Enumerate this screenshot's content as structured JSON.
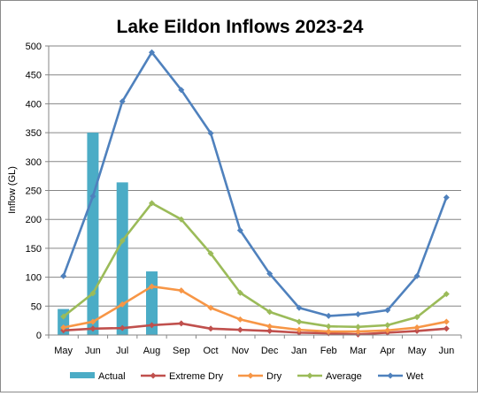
{
  "chart_data": {
    "type": "bar+line",
    "title": "Lake Eildon Inflows 2023-24",
    "ylabel": "Inflow (GL)",
    "xlabel": "",
    "ylim": [
      0,
      500
    ],
    "yticks": [
      0,
      50,
      100,
      150,
      200,
      250,
      300,
      350,
      400,
      450,
      500
    ],
    "grid": true,
    "legend_position": "bottom",
    "categories": [
      "May",
      "Jun",
      "Jul",
      "Aug",
      "Sep",
      "Oct",
      "Nov",
      "Dec",
      "Jan",
      "Feb",
      "Mar",
      "Apr",
      "May",
      "Jun"
    ],
    "series": [
      {
        "name": "Actual",
        "type": "bar",
        "color": "#4bacc6",
        "values": [
          45,
          350,
          264,
          110,
          null,
          null,
          null,
          null,
          null,
          null,
          null,
          null,
          null,
          null
        ]
      },
      {
        "name": "Extreme Dry",
        "type": "line",
        "color": "#c0504d",
        "values": [
          8,
          11,
          12,
          17,
          20,
          11,
          9,
          7,
          4,
          3,
          1,
          4,
          7,
          11
        ]
      },
      {
        "name": "Dry",
        "type": "line",
        "color": "#f79646",
        "values": [
          13,
          23,
          53,
          84,
          77,
          47,
          27,
          15,
          9,
          6,
          6,
          8,
          13,
          23
        ]
      },
      {
        "name": "Average",
        "type": "line",
        "color": "#9bbb59",
        "values": [
          32,
          72,
          163,
          228,
          200,
          141,
          73,
          40,
          23,
          15,
          14,
          17,
          31,
          71
        ]
      },
      {
        "name": "Wet",
        "type": "line",
        "color": "#4f81bd",
        "values": [
          102,
          240,
          404,
          489,
          424,
          349,
          181,
          106,
          47,
          33,
          36,
          43,
          102,
          238
        ]
      }
    ]
  }
}
